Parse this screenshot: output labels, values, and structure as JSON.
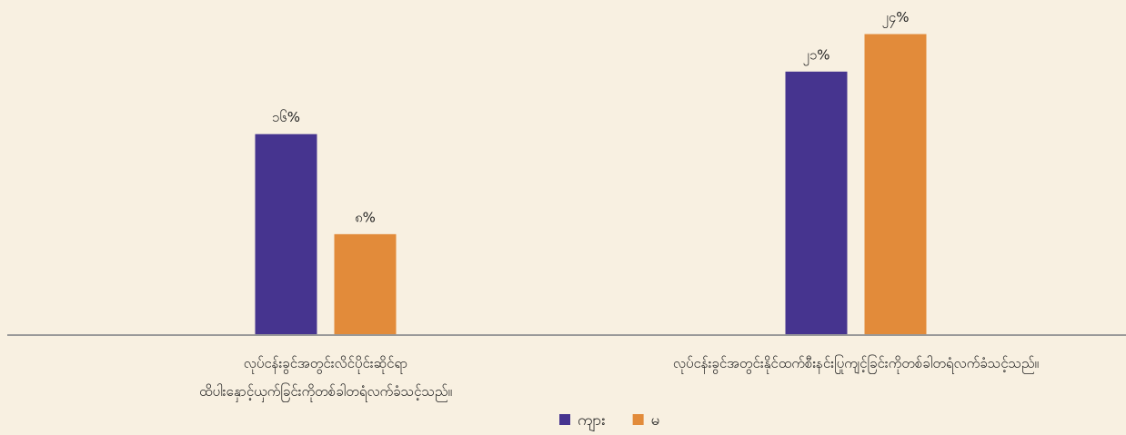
{
  "chart_data": {
    "type": "bar",
    "categories": [
      "လုပ်ငန်းခွင်အတွင်းလိင်ပိုင်းဆိုင်ရာ\nထိပါးနှောင့်ယှက်ခြင်းကိုတစ်ခါတရံလက်ခံသင့်သည်။",
      "လုပ်ငန်းခွင်အတွင်းနိုင်ထက်စီးနင်းပြုကျင့်ခြင်းကိုတစ်ခါတရံလက်ခံသင့်သည်။"
    ],
    "series": [
      {
        "name": "ကျား",
        "color": "#46348f",
        "values": [
          16,
          21
        ],
        "value_labels": [
          "၁၆%",
          "၂၁%"
        ]
      },
      {
        "name": "မ",
        "color": "#e28b3a",
        "values": [
          8,
          24
        ],
        "value_labels": [
          "၈%",
          "၂၄%"
        ]
      }
    ],
    "ylim": [
      0,
      26
    ],
    "legend": "bottom"
  }
}
